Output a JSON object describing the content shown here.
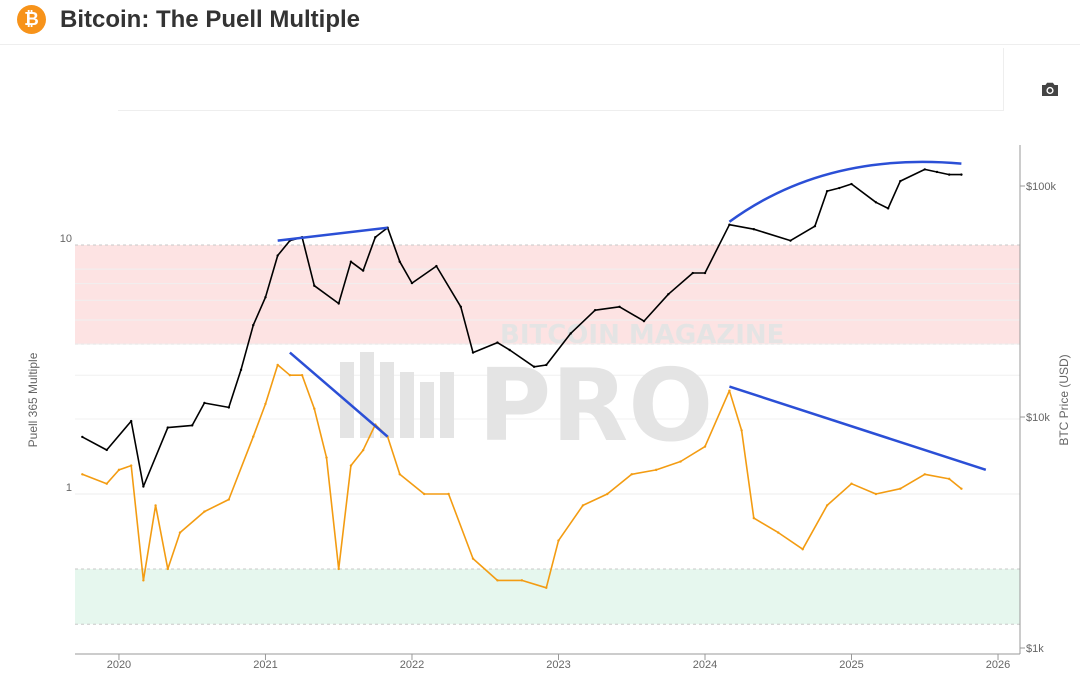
{
  "header": {
    "title": "Bitcoin: The Puell Multiple",
    "icon": "bitcoin-icon",
    "icon_glyph": "₿"
  },
  "toolbar": {
    "camera_icon": "camera-icon"
  },
  "watermark": {
    "line1": "BITCOIN MAGAZINE",
    "line2": "PRO"
  },
  "colors": {
    "puell": "#f39c12",
    "price": "#000000",
    "trendline": "#2b4fd6",
    "overheated_band": "#fde3e3",
    "undervalued_band": "#e6f7ee",
    "brand": "#f7931a"
  },
  "chart_data": {
    "type": "line",
    "title": "Bitcoin: The Puell Multiple",
    "xlabel": "",
    "ylabel_left": "Puell 365 Multiple",
    "ylabel_right": "BTC Price (USD)",
    "x_ticks": [
      "2020",
      "2021",
      "2022",
      "2023",
      "2024",
      "2025",
      "2026"
    ],
    "y_left_scale": "log",
    "y_left_ticks": [
      "10",
      "1"
    ],
    "y_right_scale": "log",
    "y_right_ticks": [
      "$100k",
      "$10k",
      "$1k"
    ],
    "grid": true,
    "bands": [
      {
        "name": "overheated",
        "from": 4,
        "to": 10
      },
      {
        "name": "undervalued",
        "from": 0.3,
        "to": 0.5
      }
    ],
    "series": [
      {
        "name": "Puell 365 Multiple",
        "axis": "left",
        "points": [
          [
            "2019-10",
            1.2
          ],
          [
            "2019-12",
            1.1
          ],
          [
            "2020-01",
            1.25
          ],
          [
            "2020-02",
            1.3
          ],
          [
            "2020-03",
            0.45
          ],
          [
            "2020-04",
            0.9
          ],
          [
            "2020-05",
            0.5
          ],
          [
            "2020-06",
            0.7
          ],
          [
            "2020-08",
            0.85
          ],
          [
            "2020-10",
            0.95
          ],
          [
            "2020-12",
            1.7
          ],
          [
            "2021-01",
            2.3
          ],
          [
            "2021-02",
            3.3
          ],
          [
            "2021-03",
            3.0
          ],
          [
            "2021-04",
            3.0
          ],
          [
            "2021-05",
            2.2
          ],
          [
            "2021-06",
            1.4
          ],
          [
            "2021-07",
            0.5
          ],
          [
            "2021-08",
            1.3
          ],
          [
            "2021-09",
            1.5
          ],
          [
            "2021-10",
            1.9
          ],
          [
            "2021-11",
            1.7
          ],
          [
            "2021-12",
            1.2
          ],
          [
            "2022-02",
            1.0
          ],
          [
            "2022-04",
            1.0
          ],
          [
            "2022-06",
            0.55
          ],
          [
            "2022-08",
            0.45
          ],
          [
            "2022-10",
            0.45
          ],
          [
            "2022-12",
            0.42
          ],
          [
            "2023-01",
            0.65
          ],
          [
            "2023-03",
            0.9
          ],
          [
            "2023-05",
            1.0
          ],
          [
            "2023-07",
            1.2
          ],
          [
            "2023-09",
            1.25
          ],
          [
            "2023-11",
            1.35
          ],
          [
            "2024-01",
            1.55
          ],
          [
            "2024-03",
            2.6
          ],
          [
            "2024-04",
            1.8
          ],
          [
            "2024-05",
            0.8
          ],
          [
            "2024-07",
            0.7
          ],
          [
            "2024-09",
            0.6
          ],
          [
            "2024-11",
            0.9
          ],
          [
            "2025-01",
            1.1
          ],
          [
            "2025-03",
            1.0
          ],
          [
            "2025-05",
            1.05
          ],
          [
            "2025-07",
            1.2
          ],
          [
            "2025-09",
            1.15
          ],
          [
            "2025-10",
            1.05
          ]
        ]
      },
      {
        "name": "BTC Price",
        "axis": "right",
        "points": [
          [
            "2019-10",
            8200
          ],
          [
            "2019-12",
            7200
          ],
          [
            "2020-02",
            9600
          ],
          [
            "2020-03",
            5000
          ],
          [
            "2020-05",
            9000
          ],
          [
            "2020-07",
            9200
          ],
          [
            "2020-08",
            11500
          ],
          [
            "2020-10",
            11000
          ],
          [
            "2020-11",
            16000
          ],
          [
            "2020-12",
            25000
          ],
          [
            "2021-01",
            33000
          ],
          [
            "2021-02",
            50000
          ],
          [
            "2021-03",
            58000
          ],
          [
            "2021-04",
            60000
          ],
          [
            "2021-05",
            37000
          ],
          [
            "2021-07",
            31000
          ],
          [
            "2021-08",
            47000
          ],
          [
            "2021-09",
            43000
          ],
          [
            "2021-10",
            60000
          ],
          [
            "2021-11",
            66000
          ],
          [
            "2021-12",
            47000
          ],
          [
            "2022-01",
            38000
          ],
          [
            "2022-03",
            45000
          ],
          [
            "2022-05",
            30000
          ],
          [
            "2022-06",
            19000
          ],
          [
            "2022-08",
            21000
          ],
          [
            "2022-09",
            19500
          ],
          [
            "2022-11",
            16500
          ],
          [
            "2022-12",
            16800
          ],
          [
            "2023-02",
            23000
          ],
          [
            "2023-04",
            29000
          ],
          [
            "2023-06",
            30000
          ],
          [
            "2023-08",
            26000
          ],
          [
            "2023-10",
            34000
          ],
          [
            "2023-12",
            42000
          ],
          [
            "2024-01",
            42000
          ],
          [
            "2024-03",
            68000
          ],
          [
            "2024-05",
            65000
          ],
          [
            "2024-08",
            58000
          ],
          [
            "2024-10",
            67000
          ],
          [
            "2024-11",
            95000
          ],
          [
            "2024-12",
            98000
          ],
          [
            "2025-01",
            102000
          ],
          [
            "2025-03",
            85000
          ],
          [
            "2025-04",
            80000
          ],
          [
            "2025-05",
            105000
          ],
          [
            "2025-07",
            118000
          ],
          [
            "2025-08",
            115000
          ],
          [
            "2025-09",
            112000
          ],
          [
            "2025-10",
            112000
          ]
        ]
      }
    ],
    "annotations": [
      {
        "type": "trendline",
        "axis": "right",
        "from": [
          "2021-02",
          58000
        ],
        "to": [
          "2021-11",
          66000
        ]
      },
      {
        "type": "trendline",
        "axis": "right",
        "from": [
          "2024-03",
          70000
        ],
        "to": [
          "2025-10",
          125000
        ]
      },
      {
        "type": "trendline",
        "axis": "left",
        "from": [
          "2021-03",
          3.7
        ],
        "to": [
          "2021-11",
          1.7
        ]
      },
      {
        "type": "trendline",
        "axis": "left",
        "from": [
          "2024-03",
          2.7
        ],
        "to": [
          "2025-12",
          1.25
        ]
      }
    ]
  }
}
